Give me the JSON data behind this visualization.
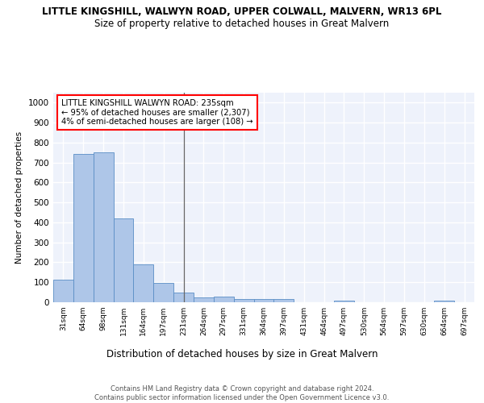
{
  "title1": "LITTLE KINGSHILL, WALWYN ROAD, UPPER COLWALL, MALVERN, WR13 6PL",
  "title2": "Size of property relative to detached houses in Great Malvern",
  "xlabel": "Distribution of detached houses by size in Great Malvern",
  "ylabel": "Number of detached properties",
  "categories": [
    "31sqm",
    "64sqm",
    "98sqm",
    "131sqm",
    "164sqm",
    "197sqm",
    "231sqm",
    "264sqm",
    "297sqm",
    "331sqm",
    "364sqm",
    "397sqm",
    "431sqm",
    "464sqm",
    "497sqm",
    "530sqm",
    "564sqm",
    "597sqm",
    "630sqm",
    "664sqm",
    "697sqm"
  ],
  "values": [
    113,
    745,
    752,
    420,
    188,
    98,
    50,
    25,
    27,
    17,
    15,
    17,
    0,
    0,
    10,
    0,
    0,
    0,
    0,
    10,
    0
  ],
  "bar_color": "#aec6e8",
  "bar_edge_color": "#5a8ec5",
  "vline_x_index": 6,
  "annotation_text": "LITTLE KINGSHILL WALWYN ROAD: 235sqm\n← 95% of detached houses are smaller (2,307)\n4% of semi-detached houses are larger (108) →",
  "annotation_box_color": "white",
  "annotation_box_edge_color": "red",
  "ylim": [
    0,
    1050
  ],
  "yticks": [
    0,
    100,
    200,
    300,
    400,
    500,
    600,
    700,
    800,
    900,
    1000
  ],
  "footer_text": "Contains HM Land Registry data © Crown copyright and database right 2024.\nContains public sector information licensed under the Open Government Licence v3.0.",
  "bg_color": "#eef2fb",
  "grid_color": "white"
}
